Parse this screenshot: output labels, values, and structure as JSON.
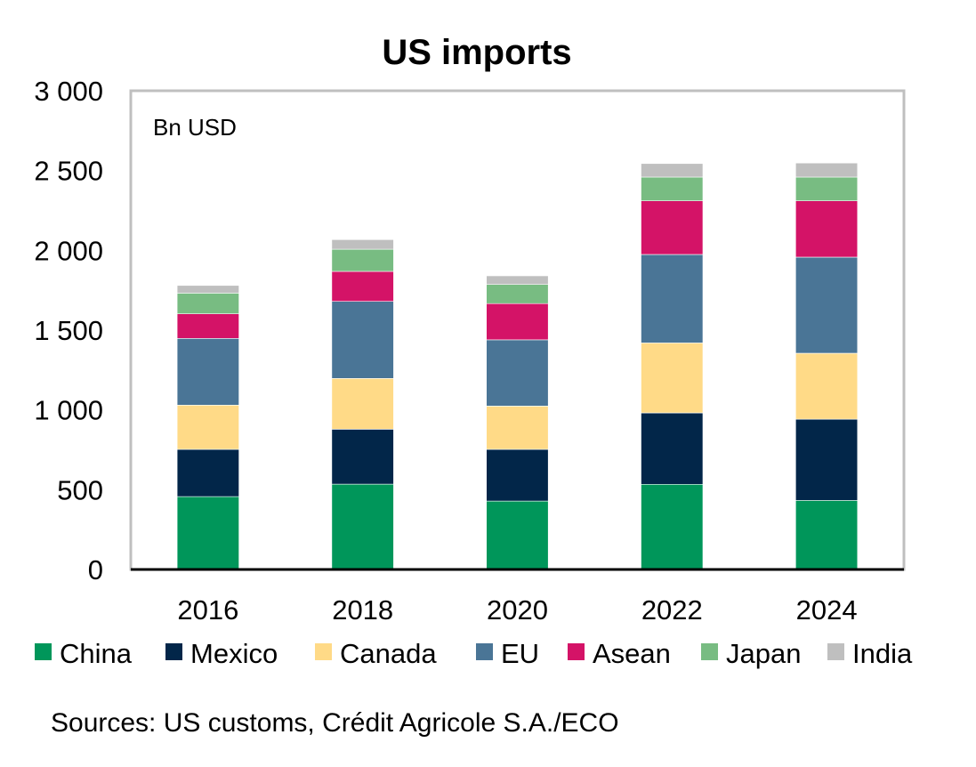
{
  "chart_data": {
    "type": "bar",
    "stacked": true,
    "title": "US imports",
    "unit_label": "Bn USD",
    "xlabel": "",
    "ylabel": "",
    "ylim": [
      0,
      3000
    ],
    "yticks": [
      0,
      500,
      1000,
      1500,
      2000,
      2500,
      3000
    ],
    "ytick_labels": [
      "0",
      "500",
      "1 000",
      "1 500",
      "2 000",
      "2 500",
      "3 000"
    ],
    "grid": false,
    "legend_position": "bottom",
    "categories": [
      "2016",
      "2018",
      "2020",
      "2022",
      "2024"
    ],
    "series": [
      {
        "name": "China",
        "color": "#00965A",
        "values": [
          457,
          535,
          429,
          534,
          433
        ]
      },
      {
        "name": "Mexico",
        "color": "#022649",
        "values": [
          296,
          344,
          324,
          447,
          509
        ]
      },
      {
        "name": "Canada",
        "color": "#FFDA87",
        "values": [
          277,
          318,
          271,
          439,
          413
        ]
      },
      {
        "name": "EU",
        "color": "#4A7596",
        "values": [
          418,
          483,
          415,
          554,
          602
        ]
      },
      {
        "name": "Asean",
        "color": "#D41367",
        "values": [
          154,
          188,
          227,
          336,
          353
        ]
      },
      {
        "name": "Japan",
        "color": "#78BC82",
        "values": [
          130,
          139,
          120,
          149,
          149
        ]
      },
      {
        "name": "India",
        "color": "#BFBFBF",
        "values": [
          48,
          60,
          54,
          85,
          88
        ]
      }
    ],
    "source": "Sources: US customs, Crédit Agricole S.A./ECO"
  }
}
